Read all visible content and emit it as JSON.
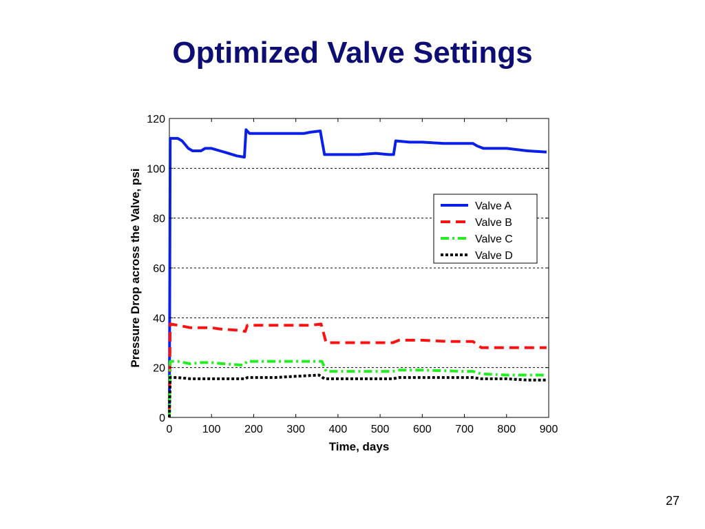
{
  "slide": {
    "title": "Optimized Valve Settings",
    "page_number": "27"
  },
  "chart_data": {
    "type": "line",
    "xlabel": "Time, days",
    "ylabel": "Pressure Drop across the Valve, psi",
    "xlim": [
      0,
      900
    ],
    "ylim": [
      0,
      120
    ],
    "xticks": [
      0,
      100,
      200,
      300,
      400,
      500,
      600,
      700,
      800,
      900
    ],
    "yticks": [
      0,
      20,
      40,
      60,
      80,
      100,
      120
    ],
    "grid": "horizontal dashed",
    "legend_position": "right-middle",
    "series": [
      {
        "name": "Valve A",
        "color": "#0a1fe8",
        "style": "solid",
        "points": [
          [
            0,
            0
          ],
          [
            2,
            112
          ],
          [
            20,
            112
          ],
          [
            30,
            111
          ],
          [
            45,
            108
          ],
          [
            55,
            107
          ],
          [
            75,
            107
          ],
          [
            85,
            108
          ],
          [
            100,
            108
          ],
          [
            120,
            107
          ],
          [
            140,
            106
          ],
          [
            160,
            105
          ],
          [
            178,
            104.5
          ],
          [
            182,
            115.5
          ],
          [
            190,
            114
          ],
          [
            230,
            114
          ],
          [
            280,
            114
          ],
          [
            320,
            114
          ],
          [
            335,
            114.5
          ],
          [
            358,
            115
          ],
          [
            368,
            105.5
          ],
          [
            420,
            105.5
          ],
          [
            450,
            105.5
          ],
          [
            490,
            106
          ],
          [
            520,
            105.5
          ],
          [
            532,
            105.5
          ],
          [
            537,
            111
          ],
          [
            570,
            110.5
          ],
          [
            600,
            110.5
          ],
          [
            650,
            110
          ],
          [
            700,
            110
          ],
          [
            720,
            110
          ],
          [
            730,
            109
          ],
          [
            745,
            108
          ],
          [
            800,
            108
          ],
          [
            850,
            107
          ],
          [
            895,
            106.5
          ]
        ]
      },
      {
        "name": "Valve B",
        "color": "#ff1010",
        "style": "dashed",
        "points": [
          [
            0,
            0
          ],
          [
            2,
            37.5
          ],
          [
            20,
            37
          ],
          [
            50,
            36
          ],
          [
            75,
            36
          ],
          [
            100,
            36
          ],
          [
            120,
            35.5
          ],
          [
            160,
            35
          ],
          [
            180,
            34.5
          ],
          [
            185,
            37
          ],
          [
            230,
            37
          ],
          [
            280,
            37
          ],
          [
            335,
            37
          ],
          [
            360,
            37.5
          ],
          [
            372,
            30
          ],
          [
            420,
            30
          ],
          [
            480,
            30
          ],
          [
            530,
            30
          ],
          [
            545,
            31
          ],
          [
            600,
            31
          ],
          [
            660,
            30.5
          ],
          [
            720,
            30.5
          ],
          [
            740,
            28
          ],
          [
            800,
            28
          ],
          [
            850,
            28
          ],
          [
            895,
            28
          ]
        ]
      },
      {
        "name": "Valve C",
        "color": "#22ee22",
        "style": "dash-dot",
        "points": [
          [
            0,
            0
          ],
          [
            2,
            22.5
          ],
          [
            20,
            22.5
          ],
          [
            50,
            21.5
          ],
          [
            75,
            22
          ],
          [
            100,
            22
          ],
          [
            130,
            21.5
          ],
          [
            175,
            21
          ],
          [
            185,
            22.5
          ],
          [
            230,
            22.5
          ],
          [
            280,
            22.5
          ],
          [
            330,
            22.5
          ],
          [
            362,
            22.5
          ],
          [
            372,
            18.5
          ],
          [
            420,
            18.5
          ],
          [
            480,
            18.5
          ],
          [
            530,
            18.5
          ],
          [
            545,
            19
          ],
          [
            600,
            19
          ],
          [
            700,
            18.5
          ],
          [
            720,
            18.5
          ],
          [
            740,
            17.5
          ],
          [
            800,
            17
          ],
          [
            895,
            17
          ]
        ]
      },
      {
        "name": "Valve D",
        "color": "#000000",
        "style": "dotted",
        "points": [
          [
            0,
            0
          ],
          [
            2,
            16
          ],
          [
            20,
            16
          ],
          [
            50,
            15.5
          ],
          [
            75,
            15.5
          ],
          [
            100,
            15.5
          ],
          [
            140,
            15.5
          ],
          [
            180,
            15.5
          ],
          [
            185,
            16
          ],
          [
            250,
            16
          ],
          [
            300,
            16.5
          ],
          [
            355,
            17
          ],
          [
            368,
            15.5
          ],
          [
            420,
            15.5
          ],
          [
            480,
            15.5
          ],
          [
            530,
            15.5
          ],
          [
            545,
            16
          ],
          [
            600,
            16
          ],
          [
            700,
            16
          ],
          [
            720,
            16
          ],
          [
            740,
            15.5
          ],
          [
            800,
            15.5
          ],
          [
            850,
            15
          ],
          [
            895,
            15
          ]
        ]
      }
    ]
  }
}
